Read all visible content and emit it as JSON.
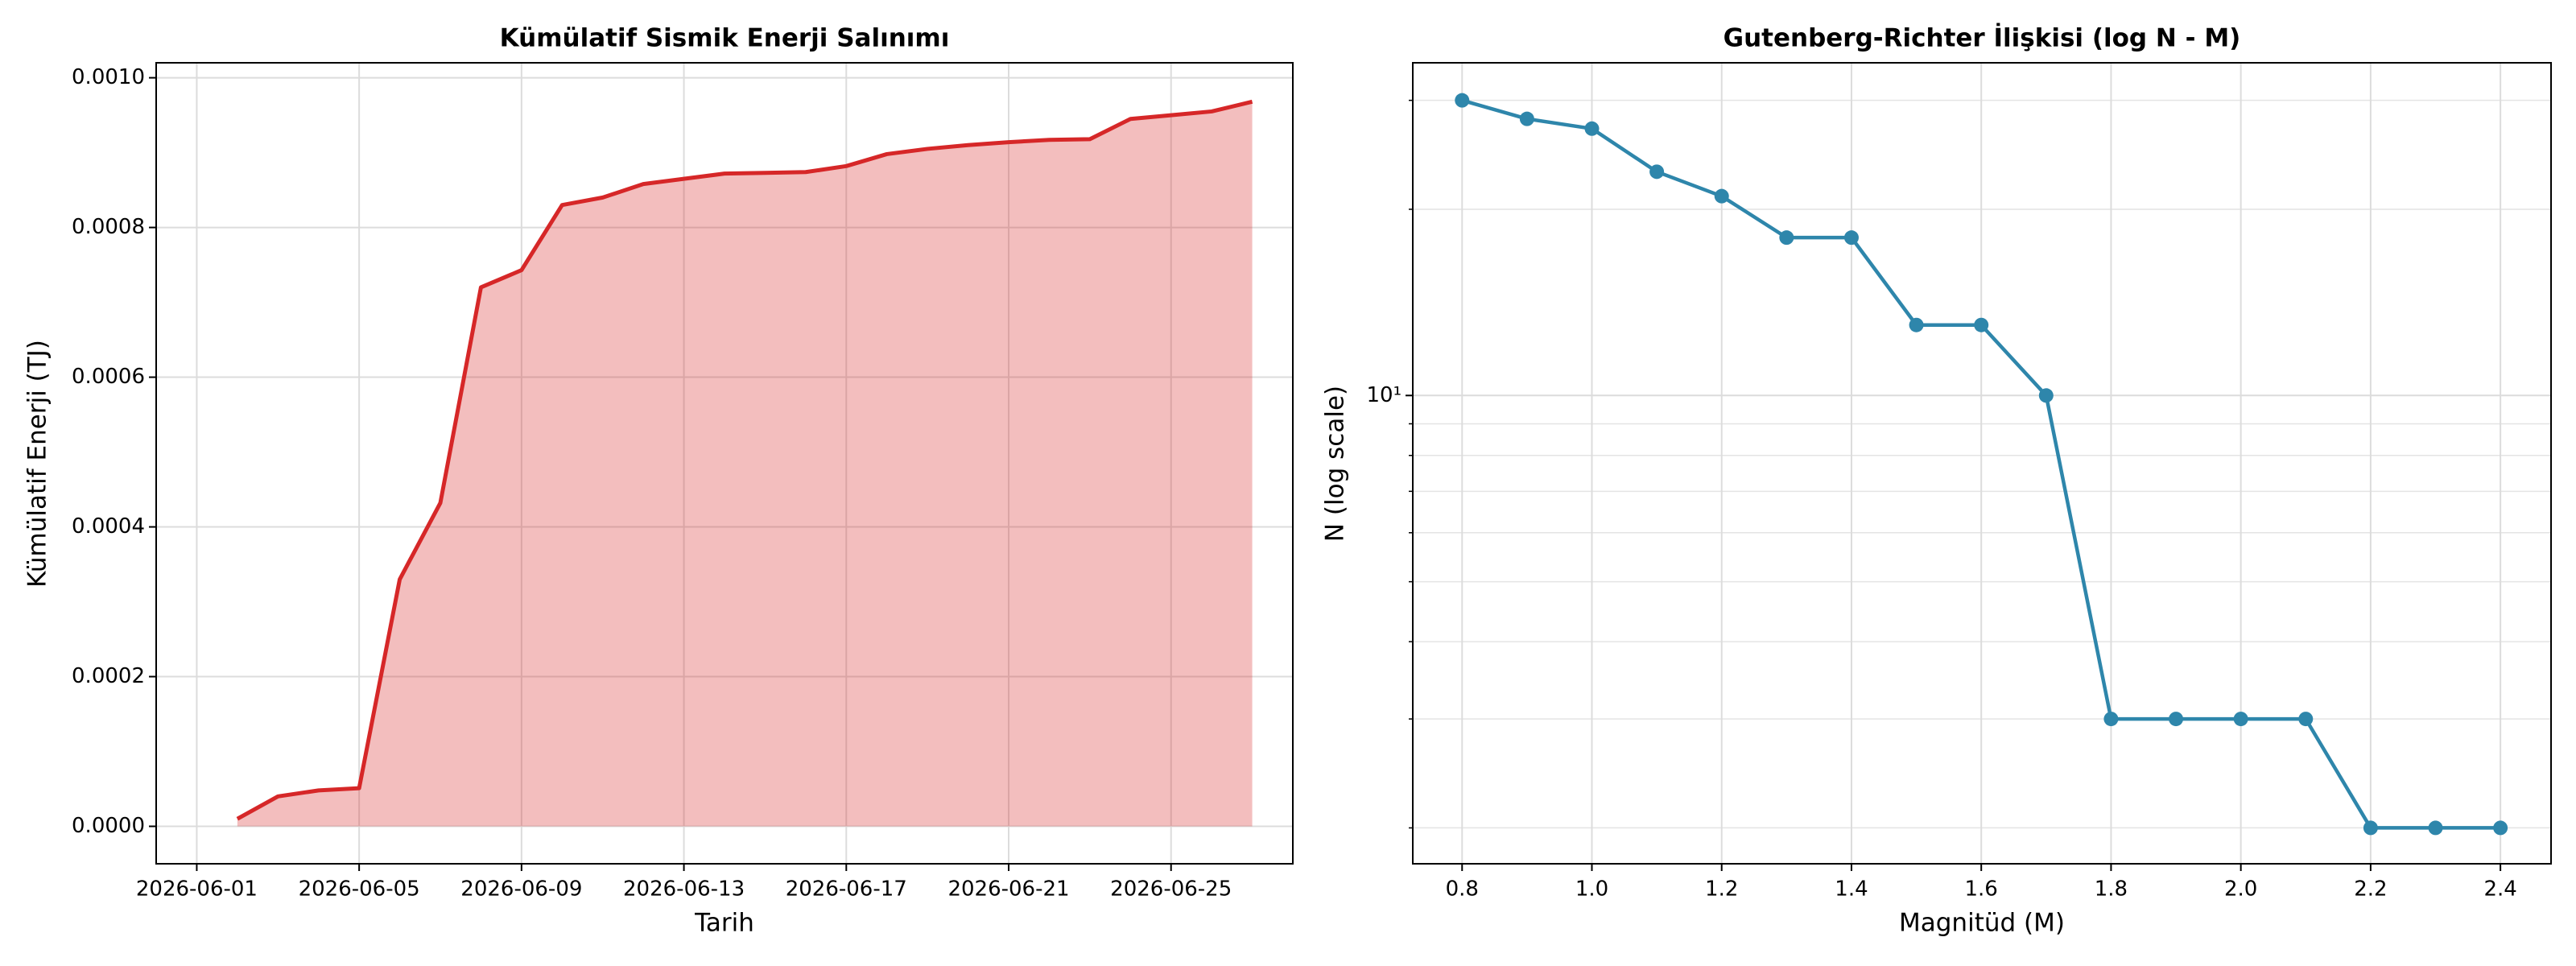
{
  "chart_data": [
    {
      "type": "area",
      "title": "Kümülatif Sismik Enerji Salınımı",
      "xlabel": "Tarih",
      "ylabel": "Kümülatif Enerji (TJ)",
      "x": [
        "2026-06-02",
        "2026-06-03",
        "2026-06-04",
        "2026-06-05",
        "2026-06-06",
        "2026-06-07",
        "2026-06-08",
        "2026-06-09",
        "2026-06-10",
        "2026-06-11",
        "2026-06-12",
        "2026-06-13",
        "2026-06-14",
        "2026-06-15",
        "2026-06-16",
        "2026-06-17",
        "2026-06-18",
        "2026-06-19",
        "2026-06-20",
        "2026-06-21",
        "2026-06-22",
        "2026-06-23",
        "2026-06-24",
        "2026-06-25",
        "2026-06-26",
        "2026-06-27"
      ],
      "values": [
        1e-05,
        4e-05,
        4.8e-05,
        5.1e-05,
        0.00033,
        0.000432,
        0.00072,
        0.000743,
        0.00083,
        0.00084,
        0.000858,
        0.000865,
        0.000872,
        0.000873,
        0.000874,
        0.000882,
        0.000898,
        0.000905,
        0.00091,
        0.000914,
        0.000917,
        0.000918,
        0.000945,
        0.00095,
        0.000955,
        0.000968
      ],
      "color": "#d62728",
      "xlim": [
        "2026-05-31",
        "2026-06-28"
      ],
      "xticks": [
        "2026-06-01",
        "2026-06-05",
        "2026-06-09",
        "2026-06-13",
        "2026-06-17",
        "2026-06-21",
        "2026-06-25"
      ],
      "ylim": [
        -5e-05,
        0.00102
      ],
      "yticks": [
        {
          "value": 0,
          "label": "0.0000"
        },
        {
          "value": 0.0002,
          "label": "0.0002"
        },
        {
          "value": 0.0004,
          "label": "0.0004"
        },
        {
          "value": 0.0006,
          "label": "0.0006"
        },
        {
          "value": 0.0008,
          "label": "0.0008"
        },
        {
          "value": 0.001,
          "label": "0.0010"
        }
      ],
      "grid": true
    },
    {
      "type": "line",
      "title": "Gutenberg-Richter İlişkisi (log N - M)",
      "xlabel": "Magnitüd (M)",
      "ylabel": "N (log scale)",
      "x": [
        0.8,
        0.9,
        1.0,
        1.1,
        1.2,
        1.3,
        1.4,
        1.5,
        1.6,
        1.7,
        1.8,
        1.9,
        2.0,
        2.1,
        2.2,
        2.3,
        2.4
      ],
      "values": [
        30,
        28,
        27,
        23,
        21,
        18,
        18,
        13,
        13,
        10,
        3,
        3,
        3,
        3,
        2,
        2,
        2
      ],
      "color": "#2e86ab",
      "log_y": true,
      "xlim": [
        0.724,
        2.478
      ],
      "xticks": [
        0.8,
        {
          "value": 1.0,
          "label": "1.0"
        },
        1.2,
        1.4,
        1.6,
        1.8,
        {
          "value": 2.0,
          "label": "2.0"
        },
        2.2,
        2.4
      ],
      "ylim": [
        1.75,
        34.5
      ],
      "yticks": [
        {
          "value": 10,
          "label": "10¹"
        }
      ],
      "minor_yticks": [
        2,
        3,
        4,
        5,
        6,
        7,
        8,
        9,
        20,
        30
      ],
      "grid": true
    }
  ]
}
